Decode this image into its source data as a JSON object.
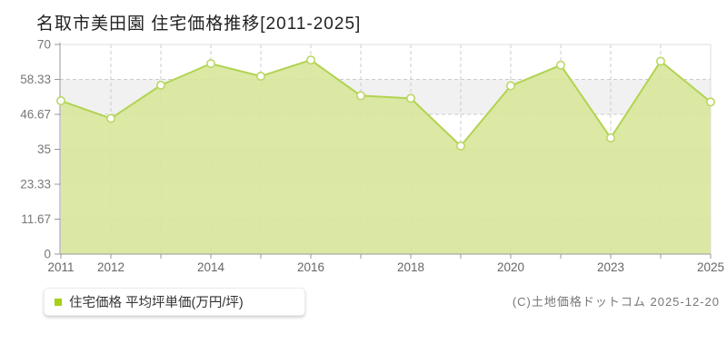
{
  "title": "名取市美田園 住宅価格推移[2011-2025]",
  "legend": {
    "marker_color": "#a6d118",
    "label": "住宅価格 平均坪単価(万円/坪)"
  },
  "footer": {
    "copyright": "(C)土地価格ドットコム 2025-12-20"
  },
  "chart_data": {
    "type": "area",
    "title": "名取市美田園 住宅価格推移[2011-2025]",
    "series_name": "住宅価格 平均坪単価(万円/坪)",
    "categories": [
      "2011",
      "2012",
      "2013",
      "2014",
      "2015",
      "2016",
      "2017",
      "2018",
      "2019",
      "2020",
      "2021",
      "2023",
      "2024",
      "2025"
    ],
    "values": [
      51.2,
      45.3,
      56.4,
      63.6,
      59.4,
      64.8,
      52.9,
      52.0,
      36.1,
      56.2,
      63.1,
      38.8,
      64.4,
      50.8
    ],
    "ylim": [
      0,
      70
    ],
    "y_tick_labels": [
      "0",
      "11.67",
      "23.33",
      "35",
      "46.67",
      "58.33",
      "70"
    ],
    "x_labeled_categories": [
      "2011",
      "2012",
      "2014",
      "2016",
      "2018",
      "2020",
      "2023",
      "2025"
    ],
    "grid": true,
    "legend_position": "bottom-left",
    "colors": {
      "area_fill": "#d8e79d",
      "line": "#b2d351",
      "marker_fill": "#ffffff",
      "marker_stroke": "#bad763",
      "band_white": "#ffffff",
      "band_alt": "#f1f1f1",
      "grid": "#cccccc",
      "axis": "#999999",
      "border": "#dddddd",
      "y_tick_label_color": "#777777",
      "x_tick_label_color": "#666666"
    }
  }
}
